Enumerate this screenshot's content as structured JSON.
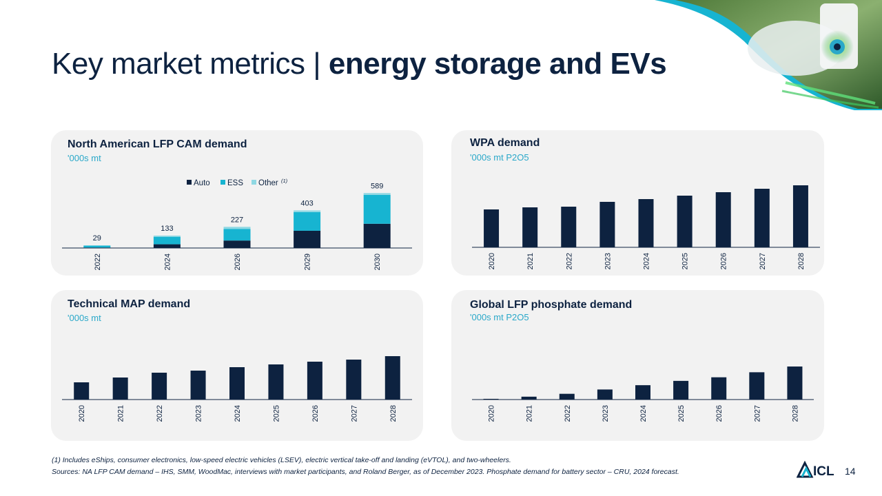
{
  "header": {
    "title_regular": "Key market metrics | ",
    "title_bold": "energy storage and EVs"
  },
  "colors": {
    "navy": "#0d2240",
    "teal": "#17b4d1",
    "light_teal": "#8fd8e3",
    "card_bg": "#f2f2f2"
  },
  "cards": {
    "lfp_cam": {
      "title": "North American LFP CAM demand",
      "unit": "'000s mt"
    },
    "wpa": {
      "title": "WPA demand",
      "unit": "'000s mt P2O5"
    },
    "map": {
      "title": "Technical  MAP demand",
      "unit": "'000s mt"
    },
    "lfp_phos": {
      "title": "Global LFP phosphate demand",
      "unit": "'000s mt P2O5"
    }
  },
  "chart_data": [
    {
      "id": "lfp_cam",
      "type": "bar",
      "stacked": true,
      "categories": [
        "2022",
        "2024",
        "2026",
        "2029",
        "2030"
      ],
      "totals": [
        29,
        133,
        227,
        403,
        589
      ],
      "series": [
        {
          "name": "Auto",
          "values": [
            5,
            40,
            80,
            185,
            260
          ]
        },
        {
          "name": "ESS",
          "values": [
            20,
            80,
            125,
            200,
            310
          ]
        },
        {
          "name": "Other",
          "values": [
            4,
            13,
            22,
            18,
            19
          ]
        }
      ],
      "legend": {
        "position": "top",
        "labels": [
          "Auto",
          "ESS",
          "Other"
        ],
        "footnote_marker": "(1)"
      },
      "ylim": [
        0,
        650
      ]
    },
    {
      "id": "wpa",
      "type": "bar",
      "categories": [
        "2020",
        "2021",
        "2022",
        "2023",
        "2024",
        "2025",
        "2026",
        "2027",
        "2028"
      ],
      "values": [
        55,
        58,
        59,
        66,
        70,
        75,
        80,
        85,
        90
      ],
      "ylim": [
        0,
        100
      ]
    },
    {
      "id": "map",
      "type": "bar",
      "categories": [
        "2020",
        "2021",
        "2022",
        "2023",
        "2024",
        "2025",
        "2026",
        "2027",
        "2028"
      ],
      "values": [
        25,
        32,
        39,
        42,
        47,
        51,
        55,
        58,
        63
      ],
      "ylim": [
        0,
        70
      ]
    },
    {
      "id": "lfp_phos",
      "type": "bar",
      "categories": [
        "2020",
        "2021",
        "2022",
        "2023",
        "2024",
        "2025",
        "2026",
        "2027",
        "2028"
      ],
      "values": [
        1,
        4,
        8,
        14,
        20,
        26,
        31,
        38,
        46
      ],
      "ylim": [
        0,
        70
      ]
    }
  ],
  "footnotes": {
    "note1": "(1) Includes eShips, consumer electronics, low-speed electric vehicles (LSEV), electric vertical take-off and landing (eVTOL), and two-wheelers.",
    "sources": "Sources: NA LFP CAM demand – IHS, SMM, WoodMac, interviews with market participants, and Roland Berger, as of December 2023. Phosphate demand for battery sector – CRU, 2024 forecast."
  },
  "brand": {
    "logo_text": "ICL",
    "page_number": "14"
  },
  "icons": [
    "ev-charger-photo",
    "icl-logo-icon"
  ]
}
